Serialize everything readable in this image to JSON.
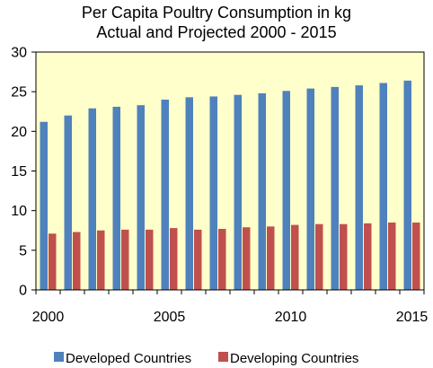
{
  "chart_data": {
    "type": "bar",
    "title_lines": [
      "Per Capita Poultry Consumption in kg",
      "Actual and Projected 2000 - 2015"
    ],
    "xlabel": "",
    "ylabel": "",
    "categories": [
      "2000",
      "2001",
      "2002",
      "2003",
      "2004",
      "2005",
      "2006",
      "2007",
      "2008",
      "2009",
      "2010",
      "2011",
      "2012",
      "2013",
      "2014",
      "2015"
    ],
    "x_tick_labels": [
      "2000",
      "2005",
      "2010",
      "2015"
    ],
    "y_ticks": [
      "0",
      "5",
      "10",
      "15",
      "20",
      "25",
      "30"
    ],
    "ylim": [
      0,
      30
    ],
    "grid": false,
    "legend_position": "bottom",
    "plot_background": "#ffffcc",
    "series": [
      {
        "name": "Developed Countries",
        "color": "#4f81bd",
        "values": [
          21.2,
          22.0,
          22.9,
          23.1,
          23.3,
          24.0,
          24.3,
          24.4,
          24.6,
          24.8,
          25.1,
          25.4,
          25.6,
          25.8,
          26.1,
          26.4
        ]
      },
      {
        "name": "Developing Countries",
        "color": "#c0504d",
        "values": [
          7.1,
          7.3,
          7.5,
          7.6,
          7.6,
          7.8,
          7.6,
          7.7,
          7.9,
          8.0,
          8.2,
          8.3,
          8.3,
          8.4,
          8.5,
          8.5
        ]
      }
    ]
  }
}
